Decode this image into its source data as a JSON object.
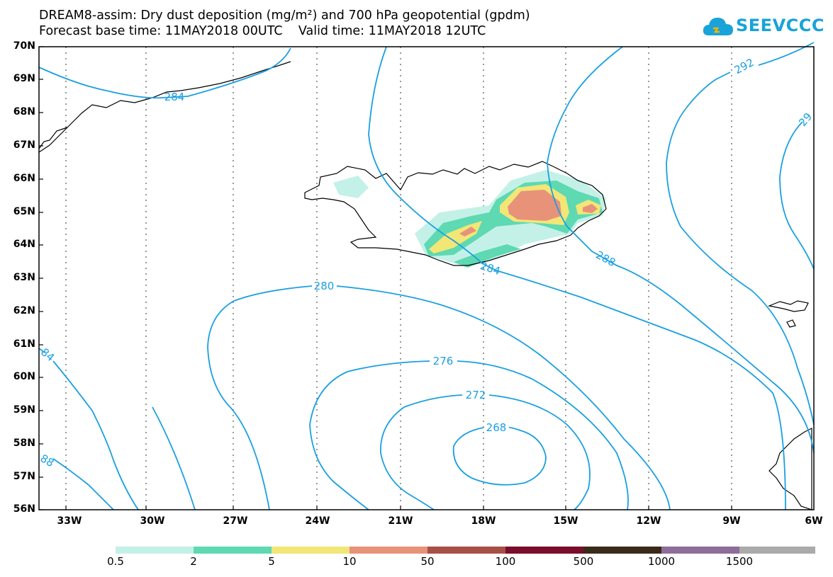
{
  "title_line1": "DREAM8-assim: Dry dust deposition (mg/m²) and 700 hPa geopotential (gpdm)",
  "title_line2": "Forecast base time: 11MAY2018 00UTC    Valid time: 11MAY2018 12UTC",
  "logo_text": "SEEVCCC",
  "lat_labels": [
    "70N",
    "69N",
    "68N",
    "67N",
    "66N",
    "65N",
    "64N",
    "63N",
    "62N",
    "61N",
    "60N",
    "59N",
    "58N",
    "57N",
    "56N"
  ],
  "lon_labels": [
    "33W",
    "30W",
    "27W",
    "24W",
    "21W",
    "18W",
    "15W",
    "12W",
    "9W",
    "6W"
  ],
  "contour_labels": [
    "284",
    "284",
    "292",
    "29",
    "280",
    "276",
    "272",
    "268",
    "288",
    "84",
    "88"
  ],
  "legend": {
    "labels": [
      "0.5",
      "2",
      "5",
      "10",
      "50",
      "100",
      "500",
      "1000",
      "1500"
    ],
    "colors": [
      "#c3f1e8",
      "#5ed9b2",
      "#f2e677",
      "#e8927a",
      "#a84f48",
      "#7a0d2a",
      "#3b2a1a",
      "#8f6d9b",
      "#aaaaaa"
    ]
  },
  "colors": {
    "contour": "#1aa0e0",
    "coast": "#000000",
    "logo": "#1aa3d8"
  }
}
